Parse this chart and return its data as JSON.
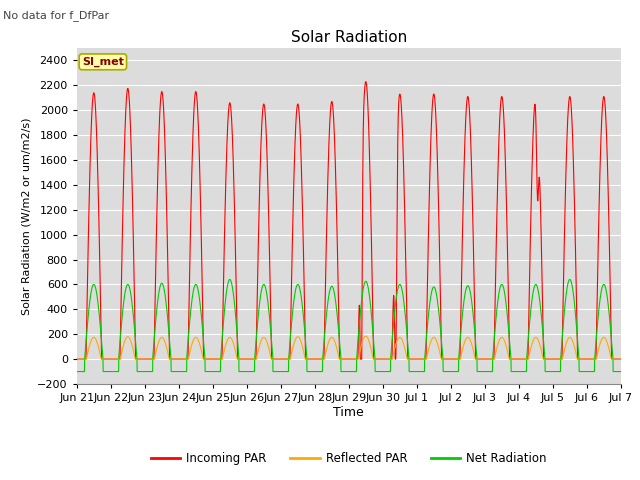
{
  "title": "Solar Radiation",
  "subtitle": "No data for f_DfPar",
  "ylabel": "Solar Radiation (W/m2 or um/m2/s)",
  "xlabel": "Time",
  "ylim": [
    -200,
    2500
  ],
  "yticks": [
    -200,
    0,
    200,
    400,
    600,
    800,
    1000,
    1200,
    1400,
    1600,
    1800,
    2000,
    2200,
    2400
  ],
  "legend_entries": [
    "Incoming PAR",
    "Reflected PAR",
    "Net Radiation"
  ],
  "legend_colors": [
    "#ff0000",
    "#ffaa00",
    "#00cc00"
  ],
  "colors": {
    "incoming": "#ff0000",
    "reflected": "#ffaa00",
    "net": "#00cc00"
  },
  "box_label": "SI_met",
  "box_facecolor": "#ffffaa",
  "box_edgecolor": "#aaaa00",
  "plot_bg_color": "#dcdcdc",
  "fig_bg_color": "#ffffff",
  "grid_color": "#ffffff",
  "n_days": 16,
  "peaks_incoming": [
    2140,
    2175,
    2150,
    2150,
    2060,
    2050,
    2050,
    2070,
    2230,
    2130,
    2130,
    2110,
    2110,
    2110,
    2110,
    2110
  ],
  "peaks_net": [
    600,
    600,
    610,
    600,
    640,
    600,
    600,
    585,
    625,
    600,
    580,
    590,
    600,
    600,
    640,
    600
  ],
  "peaks_reflected": [
    175,
    180,
    175,
    175,
    175,
    175,
    180,
    175,
    185,
    175,
    175,
    175,
    175,
    175,
    175,
    175
  ],
  "figsize": [
    6.4,
    4.8
  ],
  "dpi": 100
}
